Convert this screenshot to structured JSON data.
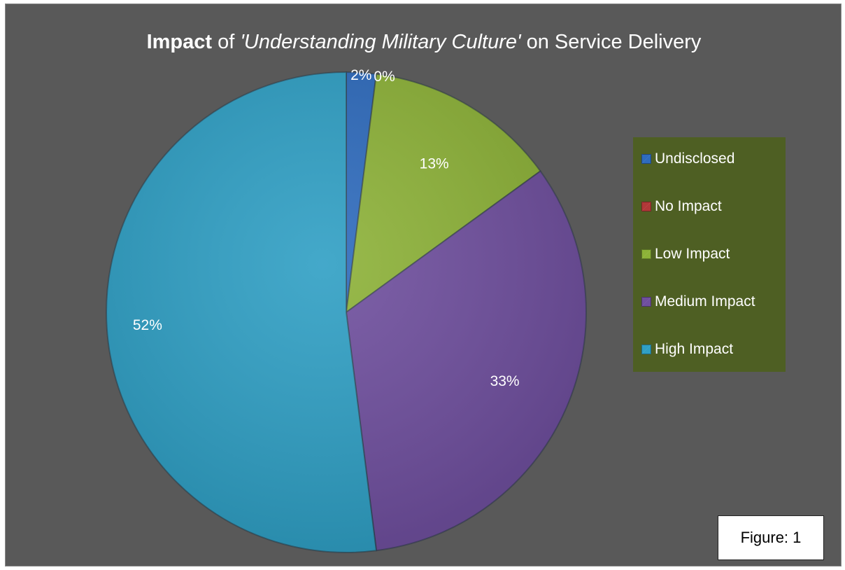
{
  "chart_data": {
    "type": "pie",
    "title": {
      "bold": "Impact",
      "pre": " of ",
      "italic": "'Understanding Military Culture'",
      "post": " on Service Delivery"
    },
    "categories": [
      "Undisclosed",
      "No Impact",
      "Low Impact",
      "Medium Impact",
      "High Impact"
    ],
    "values": [
      2,
      0,
      13,
      33,
      52
    ],
    "labels": [
      "2%",
      "0%",
      "13%",
      "33%",
      "52%"
    ],
    "colors": [
      "#2e6bbd",
      "#b23838",
      "#8db238",
      "#6f4f9e",
      "#2f9fc4"
    ],
    "legend_position": "right"
  },
  "figure_label": "Figure: 1"
}
